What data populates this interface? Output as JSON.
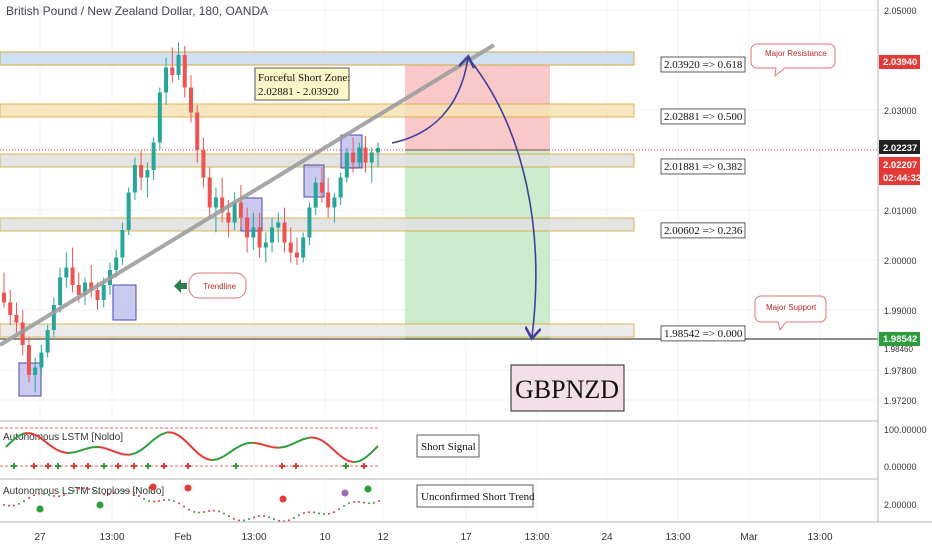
{
  "header": {
    "title": "British Pound / New Zealand Dollar, 180, OANDA"
  },
  "colors": {
    "up": "#26a69a",
    "down": "#ef5350",
    "accent": "#1e1e9e",
    "trend": "#9e9e9e"
  },
  "price_axis": {
    "ticks": [
      "2.05000",
      "2.03000",
      "2.01000",
      "2.00000",
      "1.99000",
      "1.97800",
      "1.97200"
    ],
    "tick_values": [
      2.05,
      2.03,
      2.01,
      2.0,
      1.99,
      1.978,
      1.972
    ],
    "overlap_label": "1.98460",
    "tags": {
      "resistance": "2.03940",
      "last": "2.02237",
      "bid": "2.02207",
      "countdown": "02:44:32",
      "support": "1.98542"
    }
  },
  "time_axis": {
    "labels": [
      "27",
      "13:00",
      "Feb",
      "13:00",
      "10",
      "12",
      "17",
      "13:00",
      "24",
      "13:00",
      "Mar",
      "13:00"
    ]
  },
  "levels": [
    {
      "label": "2.03920 => 0.618",
      "value": 2.0392
    },
    {
      "label": "2.02881 => 0.500",
      "value": 2.02881
    },
    {
      "label": "2.01881 => 0.382",
      "value": 2.01881
    },
    {
      "label": "2.00602 => 0.236",
      "value": 2.00602
    },
    {
      "label": "1.98542 => 0.000",
      "value": 1.98542
    }
  ],
  "annotations": {
    "short_zone_title": "Forceful Short Zone:",
    "short_zone_range": "2.02881 - 2.03920",
    "major_resistance": "Major Resistance",
    "major_support": "Major Support",
    "trendline": "Trendline",
    "symbol": "GBPNZD"
  },
  "indicators": [
    {
      "name": "Autonomous LSTM [Noldo]",
      "signal_label": "Short Signal",
      "ticks": [
        "100.00000",
        "0.00000"
      ]
    },
    {
      "name": "Autonomous LSTM Stoploss [Noldo]",
      "signal_label": "Unconfirmed Short Trend",
      "ticks": [
        "2.00000"
      ]
    }
  ],
  "chart_data": {
    "type": "candlestick",
    "title": "British Pound / New Zealand Dollar, 180, OANDA",
    "y_range": [
      1.968,
      2.052
    ],
    "projection": {
      "entry": 2.02237,
      "target": 1.98542,
      "stop": 2.0392
    },
    "candles": [
      [
        1.9935,
        1.9975,
        1.9905,
        1.9915
      ],
      [
        1.9915,
        1.994,
        1.987,
        1.989
      ],
      [
        1.989,
        1.9915,
        1.9855,
        1.9875
      ],
      [
        1.9875,
        1.99,
        1.981,
        1.983
      ],
      [
        1.983,
        1.9845,
        1.9755,
        1.977
      ],
      [
        1.977,
        1.9805,
        1.9735,
        1.9785
      ],
      [
        1.9785,
        1.983,
        1.9775,
        1.9815
      ],
      [
        1.9815,
        1.987,
        1.9805,
        1.986
      ],
      [
        1.986,
        1.9925,
        1.9845,
        1.991
      ],
      [
        1.991,
        1.9985,
        1.9895,
        1.9965
      ],
      [
        1.9965,
        2.0015,
        1.9945,
        1.9985
      ],
      [
        1.9985,
        2.0025,
        1.9935,
        1.995
      ],
      [
        1.995,
        1.9975,
        1.9915,
        1.993
      ],
      [
        1.993,
        1.9965,
        1.991,
        1.9955
      ],
      [
        1.9955,
        1.999,
        1.9925,
        1.994
      ],
      [
        1.994,
        1.9955,
        1.99,
        1.992
      ],
      [
        1.992,
        1.9965,
        1.9905,
        1.995
      ],
      [
        1.995,
        1.9995,
        1.993,
        1.998
      ],
      [
        1.998,
        2.002,
        1.9965,
        2.0005
      ],
      [
        2.0005,
        2.0075,
        1.999,
        2.006
      ],
      [
        2.006,
        2.0145,
        2.005,
        2.0135
      ],
      [
        2.0135,
        2.0205,
        2.012,
        2.019
      ],
      [
        2.019,
        2.022,
        2.014,
        2.0165
      ],
      [
        2.0165,
        2.0195,
        2.0125,
        2.018
      ],
      [
        2.018,
        2.0245,
        2.016,
        2.0235
      ],
      [
        2.0235,
        2.0345,
        2.022,
        2.0335
      ],
      [
        2.0335,
        2.0405,
        2.031,
        2.0385
      ],
      [
        2.0385,
        2.0425,
        2.0355,
        2.037
      ],
      [
        2.037,
        2.0435,
        2.036,
        2.041
      ],
      [
        2.041,
        2.0428,
        2.0325,
        2.0345
      ],
      [
        2.0345,
        2.037,
        2.0275,
        2.0295
      ],
      [
        2.0295,
        2.031,
        2.0195,
        2.022
      ],
      [
        2.022,
        2.0245,
        2.0145,
        2.0165
      ],
      [
        2.0165,
        2.0185,
        2.0085,
        2.0105
      ],
      [
        2.0105,
        2.0145,
        2.0055,
        2.0125
      ],
      [
        2.0125,
        2.0165,
        2.0075,
        2.0095
      ],
      [
        2.0095,
        2.012,
        2.0045,
        2.0075
      ],
      [
        2.0075,
        2.0135,
        2.006,
        2.0115
      ],
      [
        2.0115,
        2.015,
        2.0065,
        2.0085
      ],
      [
        2.0085,
        2.0105,
        2.0015,
        2.0045
      ],
      [
        2.0045,
        2.0095,
        2.002,
        2.0065
      ],
      [
        2.0065,
        2.0095,
        2.0005,
        2.0025
      ],
      [
        2.0025,
        2.0055,
        1.9995,
        2.0035
      ],
      [
        2.0035,
        2.0085,
        2.0015,
        2.0065
      ],
      [
        2.0065,
        2.0095,
        2.0035,
        2.0075
      ],
      [
        2.0075,
        2.0105,
        2.0015,
        2.0035
      ],
      [
        2.0035,
        2.0065,
        1.9995,
        2.0015
      ],
      [
        2.0015,
        2.0045,
        1.999,
        2.0005
      ],
      [
        2.0005,
        2.0055,
        1.9995,
        2.0045
      ],
      [
        2.0045,
        2.0115,
        2.003,
        2.0105
      ],
      [
        2.0105,
        2.0165,
        2.009,
        2.0155
      ],
      [
        2.0155,
        2.0185,
        2.0115,
        2.0135
      ],
      [
        2.0135,
        2.0165,
        2.0085,
        2.0105
      ],
      [
        2.0105,
        2.0135,
        2.0075,
        2.0125
      ],
      [
        2.0125,
        2.0175,
        2.011,
        2.0165
      ],
      [
        2.0165,
        2.0225,
        2.0155,
        2.0215
      ],
      [
        2.0215,
        2.0245,
        2.0175,
        2.0195
      ],
      [
        2.0195,
        2.0235,
        2.0185,
        2.0225
      ],
      [
        2.0225,
        2.0248,
        2.0175,
        2.0195
      ],
      [
        2.0195,
        2.0225,
        2.0155,
        2.0215
      ],
      [
        2.0215,
        2.0235,
        2.0185,
        2.0224
      ]
    ]
  }
}
